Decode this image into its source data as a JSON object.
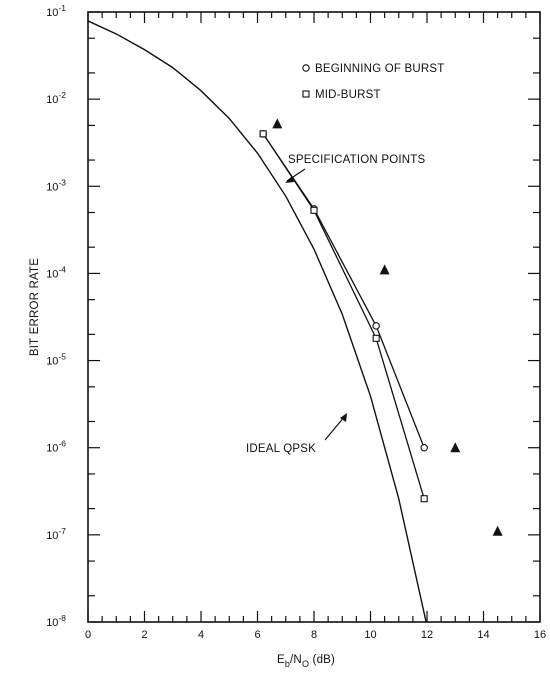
{
  "chart_data": {
    "type": "line",
    "ylabel": "BIT ERROR RATE",
    "xlabel_parts": {
      "main": "E",
      "sub1": "b",
      "slash": "/N",
      "sub2": "O",
      "unit": " (dB)"
    },
    "xlim": [
      0,
      16
    ],
    "ylim": [
      1e-08,
      0.1
    ],
    "yscale": "log",
    "x_tick_labels": [
      "0",
      "2",
      "4",
      "6",
      "8",
      "10",
      "12",
      "14",
      "16"
    ],
    "x_tick_values": [
      0,
      2,
      4,
      6,
      8,
      10,
      12,
      14,
      16
    ],
    "y_tick_labels": [
      {
        "base": "10",
        "exp": "-1",
        "value": 0.1
      },
      {
        "base": "10",
        "exp": "-2",
        "value": 0.01
      },
      {
        "base": "10",
        "exp": "-3",
        "value": 0.001
      },
      {
        "base": "10",
        "exp": "-4",
        "value": 0.0001
      },
      {
        "base": "10",
        "exp": "-5",
        "value": 1e-05
      },
      {
        "base": "10",
        "exp": "-6",
        "value": 1e-06
      },
      {
        "base": "10",
        "exp": "-7",
        "value": 1e-07
      },
      {
        "base": "10",
        "exp": "-8",
        "value": 1e-08
      }
    ],
    "legend": [
      {
        "marker": "circle",
        "label": "BEGINNING OF BURST"
      },
      {
        "marker": "square",
        "label": "MID-BURST"
      }
    ],
    "series": [
      {
        "name": "BEGINNING OF BURST",
        "marker": "circle",
        "x": [
          6.2,
          8.0,
          10.2,
          11.9
        ],
        "y": [
          0.004,
          0.00055,
          2.5e-05,
          1e-06
        ]
      },
      {
        "name": "MID-BURST",
        "marker": "square",
        "x": [
          6.2,
          8.0,
          10.2,
          11.9
        ],
        "y": [
          0.004,
          0.00053,
          1.8e-05,
          2.6e-07
        ]
      },
      {
        "name": "SPECIFICATION POINTS",
        "marker": "triangle",
        "x": [
          6.7,
          10.5,
          13.0,
          14.5
        ],
        "y": [
          0.0052,
          0.00011,
          1e-06,
          1.1e-07
        ]
      },
      {
        "name": "IDEAL QPSK",
        "marker": "none",
        "x": [
          0,
          1,
          2,
          3,
          4,
          5,
          6,
          7,
          8,
          9,
          10,
          11,
          12,
          12.2
        ],
        "y": [
          0.079,
          0.056,
          0.037,
          0.023,
          0.0125,
          0.006,
          0.0024,
          0.00077,
          0.00019,
          3.4e-05,
          3.9e-06,
          2.6e-07,
          9e-09,
          5e-09
        ]
      }
    ],
    "annotations": [
      {
        "text": "SPECIFICATION POINTS"
      },
      {
        "text": "IDEAL QPSK"
      }
    ]
  }
}
